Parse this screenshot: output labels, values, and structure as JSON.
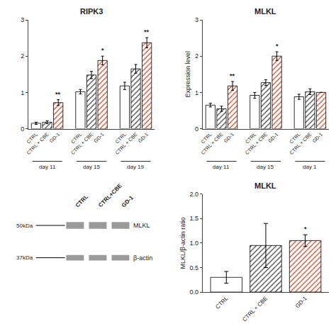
{
  "chart_data": [
    {
      "type": "bar",
      "title": "RIPK3",
      "categories": [
        "day 11",
        "day 15",
        "day 19"
      ],
      "series": [
        {
          "name": "CTRL",
          "color": "#ffffff",
          "values": [
            0.15,
            1.02,
            1.18
          ],
          "errors": [
            0.03,
            0.06,
            0.1
          ]
        },
        {
          "name": "CTRL + CBE",
          "color": "#404040",
          "values": [
            0.18,
            1.48,
            1.65
          ],
          "errors": [
            0.04,
            0.1,
            0.12
          ]
        },
        {
          "name": "GD-1",
          "color": "#cc4422",
          "values": [
            0.72,
            1.88,
            2.37
          ],
          "errors": [
            0.08,
            0.12,
            0.14
          ],
          "annotations": [
            "**",
            "*",
            "**"
          ]
        }
      ],
      "ylim": [
        0,
        3
      ],
      "yticks": [
        0,
        1,
        2,
        3
      ],
      "grid": false
    },
    {
      "type": "bar",
      "title": "MLKL",
      "ylabel": "Expression level",
      "categories": [
        "day 11",
        "day 15",
        "day 1"
      ],
      "series": [
        {
          "name": "CTRL",
          "color": "#ffffff",
          "values": [
            0.65,
            0.92,
            0.88
          ],
          "errors": [
            0.05,
            0.08,
            0.07
          ]
        },
        {
          "name": "CTRL + CBE",
          "color": "#404040",
          "values": [
            0.55,
            1.27,
            1.02
          ],
          "errors": [
            0.07,
            0.08,
            0.08
          ]
        },
        {
          "name": "GD-1",
          "color": "#cc4422",
          "values": [
            1.18,
            2.0,
            1.0
          ],
          "errors": [
            0.12,
            0.12,
            0.0
          ],
          "annotations": [
            "**",
            "*",
            null
          ]
        }
      ],
      "ylim": [
        0,
        3
      ],
      "yticks": [
        0,
        1,
        2,
        3
      ],
      "grid": false
    },
    {
      "type": "blot",
      "categories": [
        "CTRL",
        "CTRL+CBE",
        "GD-1"
      ],
      "series": [
        {
          "name": "MLKL",
          "annotation": "50kDa"
        },
        {
          "name": "β-actin",
          "annotation": "37kDa"
        }
      ],
      "color": "#888888",
      "tick_labels": false
    },
    {
      "type": "bar",
      "title": "MLKL",
      "ylabel": "MLKL/β-actin ratio",
      "categories": [
        "CTRL",
        "CTRL + CBE",
        "GD-1"
      ],
      "values": [
        0.3,
        0.95,
        1.05
      ],
      "errors": [
        0.12,
        0.45,
        0.12
      ],
      "colors": [
        "#ffffff",
        "#404040",
        "#cc4422"
      ],
      "annotations": [
        null,
        null,
        "*"
      ],
      "ylim": [
        0,
        2.0
      ],
      "yticks": [
        {
          "value": 0,
          "label": "0.0"
        },
        0.5,
        {
          "value": 1,
          "label": "1.0"
        },
        1.5,
        {
          "value": 2,
          "label": "2.0"
        }
      ],
      "grid": false
    }
  ]
}
